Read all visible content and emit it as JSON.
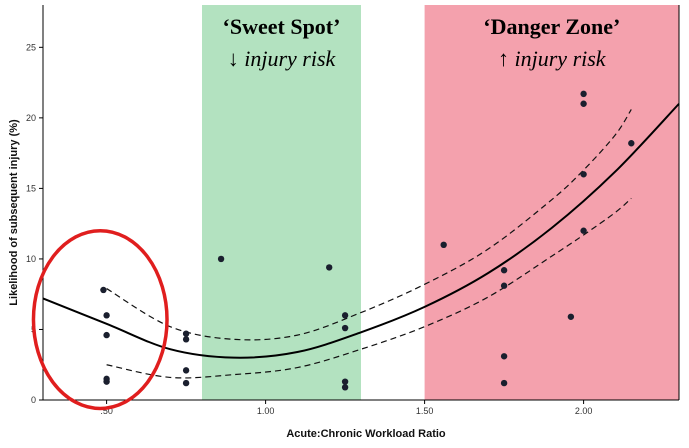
{
  "chart_data": {
    "type": "scatter",
    "xlabel": "Acute:Chronic Workload Ratio",
    "ylabel": "Likelihood of subsequent injury (%)",
    "xlim": [
      0.3,
      2.3
    ],
    "ylim": [
      0,
      28
    ],
    "x_ticks": [
      {
        "value": 0.5,
        "label": ".50"
      },
      {
        "value": 1.0,
        "label": "1.00"
      },
      {
        "value": 1.5,
        "label": "1.50"
      },
      {
        "value": 2.0,
        "label": "2.00"
      }
    ],
    "y_ticks": [
      {
        "value": 0,
        "label": "0"
      },
      {
        "value": 5,
        "label": "5"
      },
      {
        "value": 10,
        "label": "10"
      },
      {
        "value": 15,
        "label": "15"
      },
      {
        "value": 20,
        "label": "20"
      },
      {
        "value": 25,
        "label": "25"
      }
    ],
    "grid": false,
    "zones": [
      {
        "name": "sweet-spot",
        "x_start": 0.8,
        "x_end": 1.3,
        "color": "#b3e2c0",
        "title": "‘Sweet Spot’",
        "arrow": "↓",
        "subtitle": "injury risk"
      },
      {
        "name": "danger-zone",
        "x_start": 1.5,
        "x_end": 2.3,
        "color": "#f4a1ad",
        "title": "‘Danger Zone’",
        "arrow": "↑",
        "subtitle": "injury risk"
      }
    ],
    "circle_annotation": {
      "color": "#e01e1e",
      "x_center": 0.48,
      "y_center": 5.7,
      "x_radius": 0.21,
      "y_radius": 6.3
    },
    "points": [
      {
        "x": 0.49,
        "y": 7.8
      },
      {
        "x": 0.5,
        "y": 6.0
      },
      {
        "x": 0.5,
        "y": 4.6
      },
      {
        "x": 0.5,
        "y": 1.5
      },
      {
        "x": 0.5,
        "y": 1.3
      },
      {
        "x": 0.75,
        "y": 4.7
      },
      {
        "x": 0.75,
        "y": 4.3
      },
      {
        "x": 0.75,
        "y": 2.1
      },
      {
        "x": 0.75,
        "y": 1.2
      },
      {
        "x": 0.86,
        "y": 10.0
      },
      {
        "x": 1.2,
        "y": 9.4
      },
      {
        "x": 1.25,
        "y": 6.0
      },
      {
        "x": 1.25,
        "y": 5.1
      },
      {
        "x": 1.25,
        "y": 1.3
      },
      {
        "x": 1.25,
        "y": 0.9
      },
      {
        "x": 1.56,
        "y": 11.0
      },
      {
        "x": 1.75,
        "y": 9.2
      },
      {
        "x": 1.75,
        "y": 8.1
      },
      {
        "x": 1.75,
        "y": 3.1
      },
      {
        "x": 1.75,
        "y": 1.2
      },
      {
        "x": 1.96,
        "y": 5.9
      },
      {
        "x": 2.0,
        "y": 21.7
      },
      {
        "x": 2.0,
        "y": 21.0
      },
      {
        "x": 2.0,
        "y": 16.0
      },
      {
        "x": 2.0,
        "y": 12.0
      },
      {
        "x": 2.15,
        "y": 18.2
      }
    ],
    "fit_curve": {
      "style": "solid",
      "points": [
        [
          0.3,
          7.2
        ],
        [
          0.5,
          5.4
        ],
        [
          0.7,
          3.6
        ],
        [
          0.9,
          3.0
        ],
        [
          1.1,
          3.4
        ],
        [
          1.3,
          4.8
        ],
        [
          1.5,
          6.6
        ],
        [
          1.7,
          9.0
        ],
        [
          1.9,
          12.2
        ],
        [
          2.1,
          16.2
        ],
        [
          2.3,
          21.0
        ]
      ]
    },
    "confidence_bands": [
      {
        "style": "dashed",
        "points": [
          [
            0.5,
            7.9
          ],
          [
            0.7,
            5.2
          ],
          [
            0.9,
            4.3
          ],
          [
            1.1,
            4.6
          ],
          [
            1.3,
            6.2
          ],
          [
            1.5,
            8.2
          ],
          [
            1.7,
            10.7
          ],
          [
            1.9,
            14.2
          ],
          [
            2.0,
            16.3
          ],
          [
            2.1,
            18.8
          ],
          [
            2.15,
            20.6
          ]
        ]
      },
      {
        "style": "dashed",
        "points": [
          [
            0.5,
            2.5
          ],
          [
            0.7,
            1.6
          ],
          [
            0.9,
            1.8
          ],
          [
            1.1,
            2.3
          ],
          [
            1.3,
            3.6
          ],
          [
            1.5,
            5.2
          ],
          [
            1.7,
            7.3
          ],
          [
            1.9,
            10.2
          ],
          [
            2.0,
            11.7
          ],
          [
            2.1,
            13.3
          ],
          [
            2.15,
            14.3
          ]
        ]
      }
    ]
  }
}
